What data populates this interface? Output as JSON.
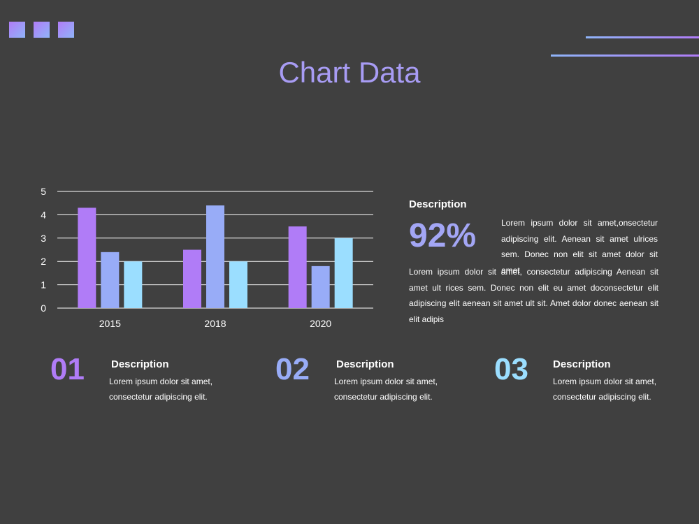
{
  "title": "Chart Data",
  "colors": {
    "background": "#404040",
    "title": "#a89cf4",
    "series": [
      "#b07cf7",
      "#98acf7",
      "#9bdeff"
    ]
  },
  "chart_data": {
    "type": "bar",
    "categories": [
      "2015",
      "2018",
      "2020"
    ],
    "series": [
      {
        "values": [
          4.3,
          2.5,
          3.5
        ]
      },
      {
        "values": [
          2.4,
          4.4,
          1.8
        ]
      },
      {
        "values": [
          2.0,
          2.0,
          3.0
        ]
      }
    ],
    "ylim": [
      0,
      5
    ],
    "yticks": [
      "0",
      "1",
      "2",
      "3",
      "4",
      "5"
    ],
    "grid": true,
    "legend": "none"
  },
  "summary": {
    "heading": "Description",
    "percent": "92%",
    "side_text": "Lorem ipsum dolor sit amet,onsectetur adipiscing elit. Aenean sit amet ulrices sem. Donec non elit sit amet dolor sit amet",
    "paragraph": "Lorem ipsum dolor sit amet, consectetur adipiscing Aenean sit amet ult rices sem. Donec non elit eu amet doconsectetur elit adipiscing elit aenean sit amet ult sit. Amet dolor donec aenean sit elit adipis"
  },
  "items": [
    {
      "number": "01",
      "heading": "Description",
      "line1": "Lorem ipsum dolor sit amet,",
      "line2": "consectetur adipiscing elit.",
      "color": "#b07cf7"
    },
    {
      "number": "02",
      "heading": "Description",
      "line1": "Lorem ipsum dolor sit amet,",
      "line2": "consectetur adipiscing elit.",
      "color": "#98acf7"
    },
    {
      "number": "03",
      "heading": "Description",
      "line1": "Lorem ipsum dolor sit amet,",
      "line2": "consectetur adipiscing elit.",
      "color": "#9bdeff"
    }
  ]
}
